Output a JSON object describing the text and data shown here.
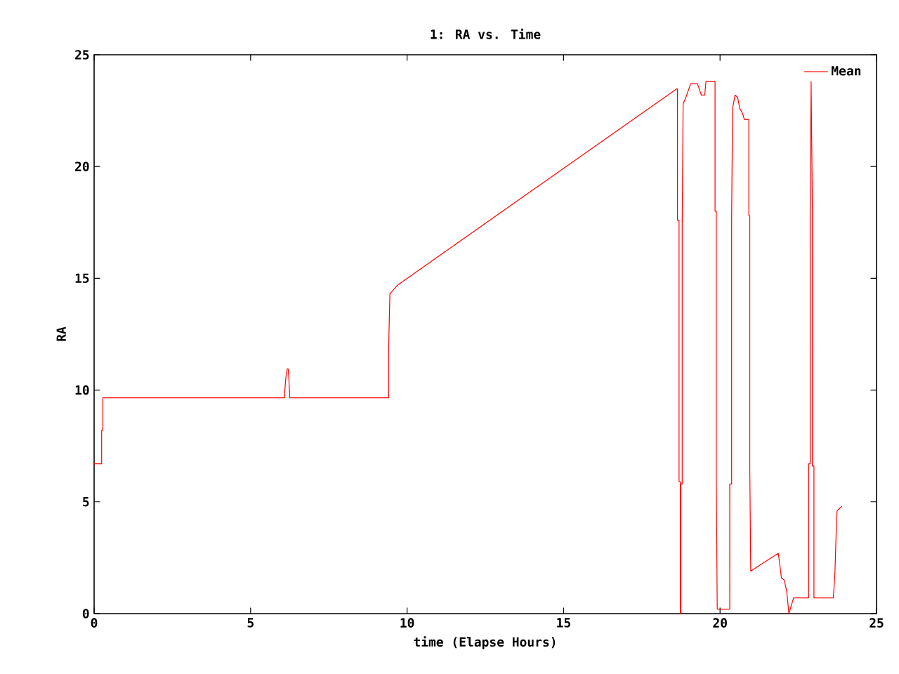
{
  "chart_data": {
    "type": "line",
    "title": "1: RA vs. Time",
    "xlabel": "time (Elapse Hours)",
    "ylabel": "RA",
    "xlim": [
      0,
      25
    ],
    "ylim": [
      0,
      25
    ],
    "xticks": [
      0,
      5,
      10,
      15,
      20,
      25
    ],
    "yticks": [
      0,
      5,
      10,
      15,
      20,
      25
    ],
    "grid": false,
    "legend": "top right",
    "marker": "none",
    "line_style": "solid",
    "series": [
      {
        "name": "Mean",
        "color": "#ff0000",
        "x": [
          0,
          0.24,
          0.24,
          0.28,
          0.28,
          6.09,
          6.09,
          6.13,
          6.17,
          6.2,
          6.22,
          6.24,
          6.25,
          6.25,
          9.41,
          9.41,
          9.45,
          9.7,
          18.61,
          18.64,
          18.64,
          18.69,
          18.69,
          18.73,
          18.73,
          18.75,
          18.75,
          18.79,
          18.79,
          18.82,
          18.91,
          19.06,
          19.28,
          19.4,
          19.51,
          19.55,
          19.81,
          19.84,
          19.84,
          19.88,
          19.88,
          19.91,
          20.3,
          20.31,
          20.31,
          20.37,
          20.37,
          20.4,
          20.48,
          20.56,
          20.63,
          20.71,
          20.78,
          20.89,
          20.92,
          20.92,
          20.95,
          20.95,
          20.98,
          21.86,
          21.9,
          21.96,
          22.05,
          22.13,
          22.2,
          22.35,
          22.8,
          22.83,
          22.83,
          22.88,
          22.88,
          22.91,
          22.95,
          22.95,
          23.0,
          23.0,
          23.04,
          23.62,
          23.67,
          23.71,
          23.74,
          23.89
        ],
        "values": [
          6.7,
          6.7,
          8.2,
          8.2,
          9.65,
          9.65,
          9.95,
          10.6,
          10.95,
          10.95,
          10.6,
          9.95,
          9.95,
          9.65,
          9.65,
          11.8,
          14.3,
          14.7,
          23.47,
          23.47,
          17.6,
          17.6,
          5.9,
          5.9,
          0,
          0,
          5.8,
          5.8,
          17.4,
          22.8,
          23.1,
          23.7,
          23.7,
          23.2,
          23.2,
          23.8,
          23.8,
          23.8,
          18.0,
          18.0,
          6.0,
          0.2,
          0.2,
          0.2,
          5.8,
          5.8,
          17.7,
          22.6,
          23.2,
          23.1,
          22.6,
          22.4,
          22.1,
          22.1,
          22.1,
          17.8,
          17.8,
          6.6,
          1.9,
          2.7,
          2.3,
          1.6,
          1.5,
          1.0,
          0.0,
          0.7,
          0.7,
          0.7,
          6.7,
          6.7,
          18.1,
          23.8,
          18.1,
          6.6,
          6.6,
          0.7,
          0.7,
          0.7,
          1.8,
          3.6,
          4.6,
          4.8
        ]
      }
    ]
  }
}
